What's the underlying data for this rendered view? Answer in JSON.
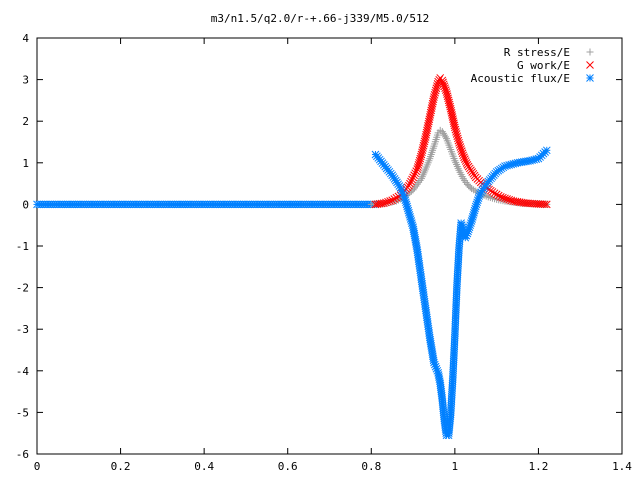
{
  "chart_data": {
    "type": "scatter",
    "title": "m3/n1.5/q2.0/r-+.66-j339/M5.0/512",
    "xlabel": "",
    "ylabel": "",
    "xlim": [
      0,
      1.4
    ],
    "ylim": [
      -6,
      4
    ],
    "x_ticks": [
      0,
      0.2,
      0.4,
      0.6,
      0.8,
      1,
      1.2,
      1.4
    ],
    "y_ticks": [
      4,
      3,
      2,
      1,
      0,
      -1,
      -2,
      -3,
      -4,
      -5,
      -6
    ],
    "grid": false,
    "legend_position": "top-right",
    "series": [
      {
        "name": "R stress/E",
        "marker": "+",
        "color": "#a0a0a0",
        "points": [
          [
            0.8,
            0.0
          ],
          [
            0.83,
            0.02
          ],
          [
            0.86,
            0.08
          ],
          [
            0.88,
            0.18
          ],
          [
            0.9,
            0.35
          ],
          [
            0.92,
            0.62
          ],
          [
            0.93,
            0.85
          ],
          [
            0.94,
            1.1
          ],
          [
            0.95,
            1.4
          ],
          [
            0.96,
            1.72
          ],
          [
            0.965,
            1.78
          ],
          [
            0.97,
            1.75
          ],
          [
            0.98,
            1.58
          ],
          [
            0.99,
            1.32
          ],
          [
            1.0,
            1.05
          ],
          [
            1.01,
            0.82
          ],
          [
            1.02,
            0.62
          ],
          [
            1.03,
            0.48
          ],
          [
            1.04,
            0.38
          ],
          [
            1.06,
            0.26
          ],
          [
            1.08,
            0.18
          ],
          [
            1.1,
            0.12
          ],
          [
            1.12,
            0.08
          ],
          [
            1.15,
            0.04
          ],
          [
            1.18,
            0.02
          ],
          [
            1.22,
            0.0
          ]
        ]
      },
      {
        "name": "G work/E",
        "marker": "x",
        "color": "#ff0000",
        "points": [
          [
            0.81,
            0.0
          ],
          [
            0.83,
            0.03
          ],
          [
            0.85,
            0.1
          ],
          [
            0.87,
            0.22
          ],
          [
            0.89,
            0.45
          ],
          [
            0.91,
            0.85
          ],
          [
            0.92,
            1.2
          ],
          [
            0.93,
            1.62
          ],
          [
            0.94,
            2.1
          ],
          [
            0.95,
            2.58
          ],
          [
            0.96,
            2.95
          ],
          [
            0.965,
            3.04
          ],
          [
            0.97,
            2.98
          ],
          [
            0.98,
            2.7
          ],
          [
            0.99,
            2.3
          ],
          [
            1.0,
            1.85
          ],
          [
            1.01,
            1.48
          ],
          [
            1.02,
            1.18
          ],
          [
            1.03,
            0.95
          ],
          [
            1.05,
            0.65
          ],
          [
            1.07,
            0.45
          ],
          [
            1.09,
            0.3
          ],
          [
            1.11,
            0.18
          ],
          [
            1.14,
            0.08
          ],
          [
            1.17,
            0.03
          ],
          [
            1.2,
            0.01
          ],
          [
            1.22,
            0.0
          ]
        ]
      },
      {
        "name": "Acoustic flux/E",
        "marker": "*",
        "color": "#0080ff",
        "points": [
          [
            0.81,
            1.2
          ],
          [
            0.83,
            0.95
          ],
          [
            0.85,
            0.7
          ],
          [
            0.87,
            0.4
          ],
          [
            0.88,
            0.15
          ],
          [
            0.89,
            -0.2
          ],
          [
            0.9,
            -0.55
          ],
          [
            0.91,
            -1.1
          ],
          [
            0.92,
            -1.8
          ],
          [
            0.93,
            -2.5
          ],
          [
            0.94,
            -3.2
          ],
          [
            0.95,
            -3.8
          ],
          [
            0.96,
            -4.05
          ],
          [
            0.965,
            -4.3
          ],
          [
            0.97,
            -4.7
          ],
          [
            0.975,
            -5.2
          ],
          [
            0.98,
            -5.55
          ],
          [
            0.985,
            -5.55
          ],
          [
            0.99,
            -5.05
          ],
          [
            0.995,
            -4.2
          ],
          [
            1.0,
            -3.15
          ],
          [
            1.005,
            -1.95
          ],
          [
            1.01,
            -1.05
          ],
          [
            1.015,
            -0.45
          ],
          [
            1.02,
            -0.6
          ],
          [
            1.025,
            -0.8
          ],
          [
            1.03,
            -0.7
          ],
          [
            1.04,
            -0.4
          ],
          [
            1.05,
            -0.05
          ],
          [
            1.06,
            0.25
          ],
          [
            1.08,
            0.55
          ],
          [
            1.1,
            0.78
          ],
          [
            1.12,
            0.92
          ],
          [
            1.15,
            1.0
          ],
          [
            1.18,
            1.05
          ],
          [
            1.2,
            1.1
          ],
          [
            1.22,
            1.3
          ]
        ]
      }
    ]
  }
}
